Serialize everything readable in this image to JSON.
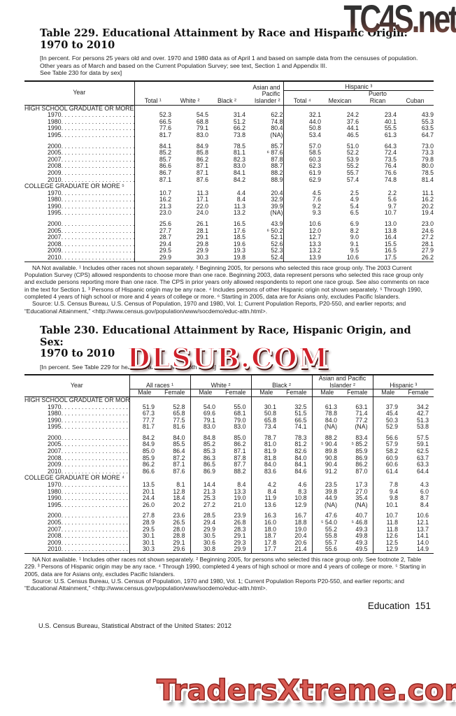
{
  "watermarks": {
    "top": "TC4S.net",
    "middle": "DLSUB.COM",
    "bottom": "TradersXtreme.com"
  },
  "footer": {
    "page_label": "Education  151",
    "credit": "U.S. Census Bureau, Statistical Abstract of the United States: 2012"
  },
  "leader": ". . . . . . . . . . . . . . . . . . . . . . . . . . . . . . . . . . . . . . . .",
  "t229": {
    "title": "Table 229. Educational Attainment by Race and Hispanic Origin:\n1970 to 2010",
    "headnote": "[In percent. For persons 25 years old and over. 1970 and 1980 data as of April 1 and based on sample data from the censuses of population. Other years as of March and based on the Current Population Survey; see text, Section 1 and Appendix III.\nSee Table 230 for data by sex]",
    "year_label": "Year",
    "columns": {
      "total": "Total ¹",
      "white": "White ²",
      "black": "Black ²",
      "api": "Asian and\nPacific\nIslander ²",
      "hispanic": "Hispanic ³",
      "h_total": "Total ⁴",
      "mexican": "Mexican",
      "puerto_rican": "Puerto\nRican",
      "cuban": "Cuban"
    },
    "sections": [
      {
        "label": "HIGH SCHOOL GRADUATE\nOR MORE ⁵",
        "row_groups": [
          [
            {
              "year": "1970",
              "values": [
                "52.3",
                "54.5",
                "31.4",
                "62.2",
                "32.1",
                "24.2",
                "23.4",
                "43.9"
              ]
            },
            {
              "year": "1980",
              "values": [
                "66.5",
                "68.8",
                "51.2",
                "74.8",
                "44.0",
                "37.6",
                "40.1",
                "55.3"
              ]
            },
            {
              "year": "1990",
              "values": [
                "77.6",
                "79.1",
                "66.2",
                "80.4",
                "50.8",
                "44.1",
                "55.5",
                "63.5"
              ]
            },
            {
              "year": "1995",
              "values": [
                "81.7",
                "83.0",
                "73.8",
                "(NA)",
                "53.4",
                "46.5",
                "61.3",
                "64.7"
              ]
            }
          ],
          [
            {
              "year": "2000",
              "values": [
                "84.1",
                "84.9",
                "78.5",
                "85.7",
                "57.0",
                "51.0",
                "64.3",
                "73.0"
              ]
            },
            {
              "year": "2005",
              "values": [
                "85.2",
                "85.8",
                "81.1",
                "⁶ 87.6",
                "58.5",
                "52.2",
                "72.4",
                "73.3"
              ]
            },
            {
              "year": "2007",
              "values": [
                "85.7",
                "86.2",
                "82.3",
                "87.8",
                "60.3",
                "53.9",
                "73.5",
                "79.8"
              ]
            },
            {
              "year": "2008",
              "values": [
                "86.6",
                "87.1",
                "83.0",
                "88.7",
                "62.3",
                "55.2",
                "76.4",
                "80.0"
              ]
            },
            {
              "year": "2009",
              "values": [
                "86.7",
                "87.1",
                "84.1",
                "88.2",
                "61.9",
                "55.7",
                "76.6",
                "78.5"
              ]
            },
            {
              "year": "2010",
              "values": [
                "87.1",
                "87.6",
                "84.2",
                "88.9",
                "62.9",
                "57.4",
                "74.8",
                "81.4"
              ]
            }
          ]
        ]
      },
      {
        "label": "COLLEGE GRADUATE OR\nMORE ⁵",
        "row_groups": [
          [
            {
              "year": "1970",
              "values": [
                "10.7",
                "11.3",
                "4.4",
                "20.4",
                "4.5",
                "2.5",
                "2.2",
                "11.1"
              ]
            },
            {
              "year": "1980",
              "values": [
                "16.2",
                "17.1",
                "8.4",
                "32.9",
                "7.6",
                "4.9",
                "5.6",
                "16.2"
              ]
            },
            {
              "year": "1990",
              "values": [
                "21.3",
                "22.0",
                "11.3",
                "39.9",
                "9.2",
                "5.4",
                "9.7",
                "20.2"
              ]
            },
            {
              "year": "1995",
              "values": [
                "23.0",
                "24.0",
                "13.2",
                "(NA)",
                "9.3",
                "6.5",
                "10.7",
                "19.4"
              ]
            }
          ],
          [
            {
              "year": "2000",
              "values": [
                "25.6",
                "26.1",
                "16.5",
                "43.9",
                "10.6",
                "6.9",
                "13.0",
                "23.0"
              ]
            },
            {
              "year": "2005",
              "values": [
                "27.7",
                "28.1",
                "17.6",
                "⁶ 50.2",
                "12.0",
                "8.2",
                "13.8",
                "24.6"
              ]
            },
            {
              "year": "2007",
              "values": [
                "28.7",
                "29.1",
                "18.5",
                "52.1",
                "12.7",
                "9.0",
                "16.4",
                "27.2"
              ]
            },
            {
              "year": "2008",
              "values": [
                "29.4",
                "29.8",
                "19.6",
                "52.6",
                "13.3",
                "9.1",
                "15.5",
                "28.1"
              ]
            },
            {
              "year": "2009",
              "values": [
                "29.5",
                "29.9",
                "19.3",
                "52.3",
                "13.2",
                "9.5",
                "16.5",
                "27.9"
              ]
            },
            {
              "year": "2010",
              "values": [
                "29.9",
                "30.3",
                "19.8",
                "52.4",
                "13.9",
                "10.6",
                "17.5",
                "26.2"
              ]
            }
          ]
        ]
      }
    ],
    "footnote": "NA Not available. ¹ Includes other races not shown separately. ² Beginning 2005, for persons who selected this race group only. The 2003 Current Population Survey (CPS) allowed respondents to choose more than one race. Beginning 2003, data represent persons who selected this race group only and exclude persons reporting more than one race. The CPS in prior years only allowed respondents to report one race group. See also comments on race in the text for Section 1. ³ Persons of Hispanic origin may be any race. ⁴ Includes persons of other Hispanic origin not shown separately. ⁵ Through 1990, completed 4 years of high school or more and 4 years of college or more. ⁶ Starting in 2005, data are for Asians only, excludes Pacific Islanders.",
    "source": "Source: U.S. Census Bureau, U.S. Census of Population, 1970 and 1980, Vol. 1; Current Population Reports, P20-550, and earlier reports; and “Educational Attainment,” <http://www.census.gov/population/www/socdemo/educ-attn.html>."
  },
  "t230": {
    "title": "Table 230. Educational Attainment by Race, Hispanic Origin, and Sex:\n1970 to 2010",
    "headnote": "[In percent. See Table 229 for headnote and totals for both sexes]",
    "year_label": "Year",
    "columns": {
      "all_races": "All races ¹",
      "white": "White ²",
      "black": "Black ²",
      "api": "Asian and Pacific\nIslander ²",
      "hispanic": "Hispanic ³",
      "male": "Male",
      "female": "Female"
    },
    "sections": [
      {
        "label": "HIGH SCHOOL GRADUATE\nOR MORE ⁴",
        "row_groups": [
          [
            {
              "year": "1970",
              "values": [
                "51.9",
                "52.8",
                "54.0",
                "55.0",
                "30.1",
                "32.5",
                "61.3",
                "63.1",
                "37.9",
                "34.2"
              ]
            },
            {
              "year": "1980",
              "values": [
                "67.3",
                "65.8",
                "69.6",
                "68.1",
                "50.8",
                "51.5",
                "78.8",
                "71.4",
                "45.4",
                "42.7"
              ]
            },
            {
              "year": "1990",
              "values": [
                "77.7",
                "77.5",
                "79.1",
                "79.0",
                "65.8",
                "66.5",
                "84.0",
                "77.2",
                "50.3",
                "51.3"
              ]
            },
            {
              "year": "1995",
              "values": [
                "81.7",
                "81.6",
                "83.0",
                "83.0",
                "73.4",
                "74.1",
                "(NA)",
                "(NA)",
                "52.9",
                "53.8"
              ]
            }
          ],
          [
            {
              "year": "2000",
              "values": [
                "84.2",
                "84.0",
                "84.8",
                "85.0",
                "78.7",
                "78.3",
                "88.2",
                "83.4",
                "56.6",
                "57.5"
              ]
            },
            {
              "year": "2005",
              "values": [
                "84.9",
                "85.5",
                "85.2",
                "86.2",
                "81.0",
                "81.2",
                "⁵ 90.4",
                "⁵ 85.2",
                "57.9",
                "59.1"
              ]
            },
            {
              "year": "2007",
              "values": [
                "85.0",
                "86.4",
                "85.3",
                "87.1",
                "81.9",
                "82.6",
                "89.8",
                "85.9",
                "58.2",
                "62.5"
              ]
            },
            {
              "year": "2008",
              "values": [
                "85.9",
                "87.2",
                "86.3",
                "87.8",
                "81.8",
                "84.0",
                "90.8",
                "86.9",
                "60.9",
                "63.7"
              ]
            },
            {
              "year": "2009",
              "values": [
                "86.2",
                "87.1",
                "86.5",
                "87.7",
                "84.0",
                "84.1",
                "90.4",
                "86.2",
                "60.6",
                "63.3"
              ]
            },
            {
              "year": "2010",
              "values": [
                "86.6",
                "87.6",
                "86.9",
                "88.2",
                "83.6",
                "84.6",
                "91.2",
                "87.0",
                "61.4",
                "64.4"
              ]
            }
          ]
        ]
      },
      {
        "label": "COLLEGE GRADUATE\nOR MORE ⁴",
        "row_groups": [
          [
            {
              "year": "1970",
              "values": [
                "13.5",
                "8.1",
                "14.4",
                "8.4",
                "4.2",
                "4.6",
                "23.5",
                "17.3",
                "7.8",
                "4.3"
              ]
            },
            {
              "year": "1980",
              "values": [
                "20.1",
                "12.8",
                "21.3",
                "13.3",
                "8.4",
                "8.3",
                "39.8",
                "27.0",
                "9.4",
                "6.0"
              ]
            },
            {
              "year": "1990",
              "values": [
                "24.4",
                "18.4",
                "25.3",
                "19.0",
                "11.9",
                "10.8",
                "44.9",
                "35.4",
                "9.8",
                "8.7"
              ]
            },
            {
              "year": "1995",
              "values": [
                "26.0",
                "20.2",
                "27.2",
                "21.0",
                "13.6",
                "12.9",
                "(NA)",
                "(NA)",
                "10.1",
                "8.4"
              ]
            }
          ],
          [
            {
              "year": "2000",
              "values": [
                "27.8",
                "23.6",
                "28.5",
                "23.9",
                "16.3",
                "16.7",
                "47.6",
                "40.7",
                "10.7",
                "10.6"
              ]
            },
            {
              "year": "2005",
              "values": [
                "28.9",
                "26.5",
                "29.4",
                "26.8",
                "16.0",
                "18.8",
                "⁵ 54.0",
                "⁵ 46.8",
                "11.8",
                "12.1"
              ]
            },
            {
              "year": "2007",
              "values": [
                "29.5",
                "28.0",
                "29.9",
                "28.3",
                "18.0",
                "19.0",
                "55.2",
                "49.3",
                "11.8",
                "13.7"
              ]
            },
            {
              "year": "2008",
              "values": [
                "30.1",
                "28.8",
                "30.5",
                "29.1",
                "18.7",
                "20.4",
                "55.8",
                "49.8",
                "12.6",
                "14.1"
              ]
            },
            {
              "year": "2009",
              "values": [
                "30.1",
                "29.1",
                "30.6",
                "29.3",
                "17.8",
                "20.6",
                "55.7",
                "49.3",
                "12.5",
                "14.0"
              ]
            },
            {
              "year": "2010",
              "values": [
                "30.3",
                "29.6",
                "30.8",
                "29.9",
                "17.7",
                "21.4",
                "55.6",
                "49.5",
                "12.9",
                "14.9"
              ]
            }
          ]
        ]
      }
    ],
    "footnote": "NA Not available. ¹ Includes other races not shown separately. ² Beginning 2005, for persons who selected this race group only. See footnote 2, Table 229. ³ Persons of Hispanic origin may be any race. ⁴ Through 1990, completed 4 years of high school or more and 4 years of college or more. ⁵ Starting in 2005, data are for Asians only, excludes Pacific Islanders.",
    "source": "Source: U.S. Census Bureau, U.S. Census of Population, 1970 and 1980, Vol. 1; Current Population Reports P20-550, and earlier reports; and “Educational Attainment,” <http://www.census.gov/population/www/socdemo/educ-attn.html>."
  }
}
